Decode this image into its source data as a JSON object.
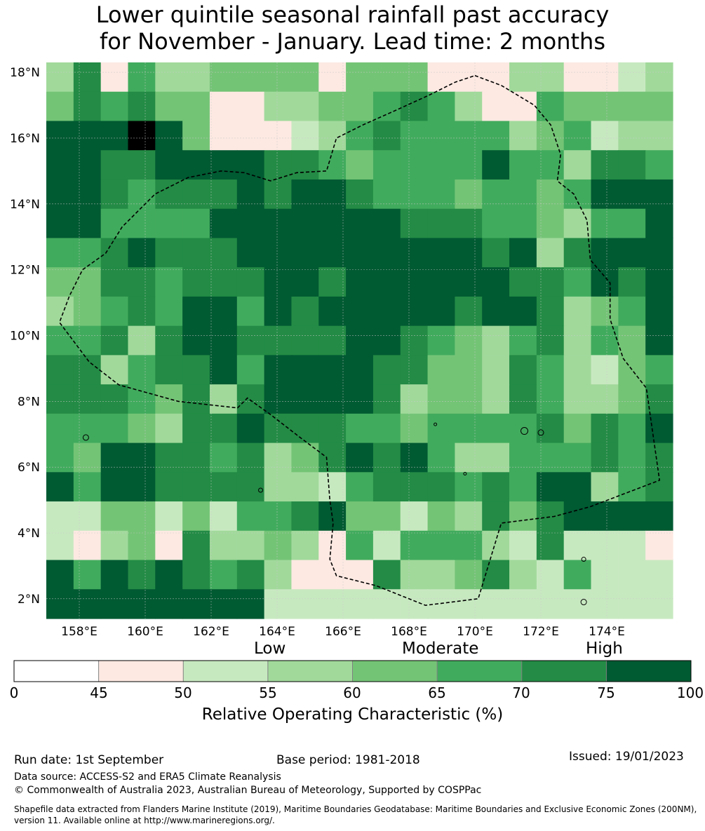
{
  "title": {
    "line1": "Lower quintile seasonal rainfall past accuracy",
    "line2": "for November - January. Lead time: 2 months"
  },
  "map": {
    "lat_labels": [
      "18°N",
      "16°N",
      "14°N",
      "12°N",
      "10°N",
      "8°N",
      "6°N",
      "4°N",
      "2°N"
    ],
    "lat_values": [
      18,
      16,
      14,
      12,
      10,
      8,
      6,
      4,
      2
    ],
    "lon_labels": [
      "158°E",
      "160°E",
      "162°E",
      "164°E",
      "166°E",
      "168°E",
      "170°E",
      "172°E",
      "174°E"
    ],
    "lon_values": [
      158,
      160,
      162,
      164,
      166,
      168,
      170,
      172,
      174
    ],
    "lon_range": [
      157,
      176
    ],
    "lat_range": [
      1.4,
      18.3
    ],
    "cell_size_deg": 0.83,
    "grid_cols": 23,
    "grid_rows": 19,
    "grid_category_rows": [
      "36153344441444111331123",
      "46564411334456531154444",
      "77787411123565555345233",
      "77667777665455557553665",
      "77656667677655545545777",
      "77555577777776665543557",
      "55676667777777776736777",
      "44665666776777777665767",
      "34565775767777767763457",
      "55636776666776543563547",
      "66356675777766443653245",
      "66654636777763443653346",
      "55543667666554555564657",
      "54776656346767533555656",
      "75776666332566656577356",
      "22442425567442436467777",
      "21341633431525553262221",
      "75767656311163346325222",
      "77777777222222222222222"
    ],
    "colors": {
      "cat0": "#ffffff",
      "cat1": "#fde9e2",
      "cat2": "#c7e9c0",
      "cat3": "#a1d99b",
      "cat4": "#74c476",
      "cat5": "#41ab5d",
      "cat6": "#238b45",
      "cat7": "#005a32",
      "grid_line": "#c8c8c8",
      "eez_line": "#000000"
    },
    "eez_boundary_lonlat": [
      [
        170,
        17.9
      ],
      [
        170.8,
        17.6
      ],
      [
        171.8,
        17.0
      ],
      [
        172.3,
        16.4
      ],
      [
        172.6,
        15.5
      ],
      [
        172.5,
        14.7
      ],
      [
        173.0,
        14.3
      ],
      [
        173.4,
        13.5
      ],
      [
        173.5,
        12.3
      ],
      [
        174.1,
        11.6
      ],
      [
        174.1,
        10.5
      ],
      [
        174.5,
        9.3
      ],
      [
        175.2,
        8.4
      ],
      [
        175.4,
        7.0
      ],
      [
        175.6,
        5.6
      ],
      [
        173.5,
        4.8
      ],
      [
        172.4,
        4.5
      ],
      [
        170.8,
        4.3
      ],
      [
        170.1,
        2.0
      ],
      [
        168.5,
        1.8
      ],
      [
        167.0,
        2.4
      ],
      [
        165.8,
        2.7
      ],
      [
        165.6,
        3.2
      ],
      [
        165.7,
        4.3
      ],
      [
        165.6,
        5.0
      ],
      [
        165.5,
        6.3
      ],
      [
        164.7,
        6.9
      ],
      [
        163.8,
        7.6
      ],
      [
        163.1,
        8.1
      ],
      [
        162.8,
        7.8
      ],
      [
        161.0,
        8.0
      ],
      [
        159.2,
        8.5
      ],
      [
        158.3,
        9.2
      ],
      [
        157.4,
        10.4
      ],
      [
        157.7,
        11.2
      ],
      [
        158.1,
        12.0
      ],
      [
        158.8,
        12.5
      ],
      [
        159.3,
        13.3
      ],
      [
        160.3,
        14.3
      ],
      [
        161.3,
        14.8
      ],
      [
        162.3,
        15.0
      ],
      [
        163.0,
        14.95
      ],
      [
        163.8,
        14.7
      ],
      [
        164.6,
        14.95
      ],
      [
        165.5,
        15.0
      ],
      [
        165.8,
        16.0
      ],
      [
        166.6,
        16.4
      ],
      [
        167.5,
        16.8
      ],
      [
        168.6,
        17.3
      ],
      [
        169.4,
        17.7
      ]
    ]
  },
  "legend": {
    "categories": [
      "Low",
      "Moderate",
      "High"
    ],
    "ticks": [
      "0",
      "45",
      "50",
      "55",
      "60",
      "65",
      "70",
      "75",
      "100"
    ],
    "title": "Relative Operating Characteristic (%)"
  },
  "footer": {
    "run_date": "Run date: 1st September",
    "base_period": "Base period: 1981-2018",
    "issued": "Issued: 19/01/2023",
    "data_source": "Data source: ACCESS-S2 and ERA5 Climate Reanalysis",
    "copyright": "© Commonwealth of Australia 2023, Australian Bureau of Meteorology, Supported by COSPPac",
    "shapefile_line1": "Shapefile data extracted from Flanders Marine Institute (2019), Maritime Boundaries Geodatabase: Maritime Boundaries and Exclusive Economic Zones (200NM),",
    "shapefile_line2": "version 11. Available online at http://www.marineregions.org/."
  }
}
